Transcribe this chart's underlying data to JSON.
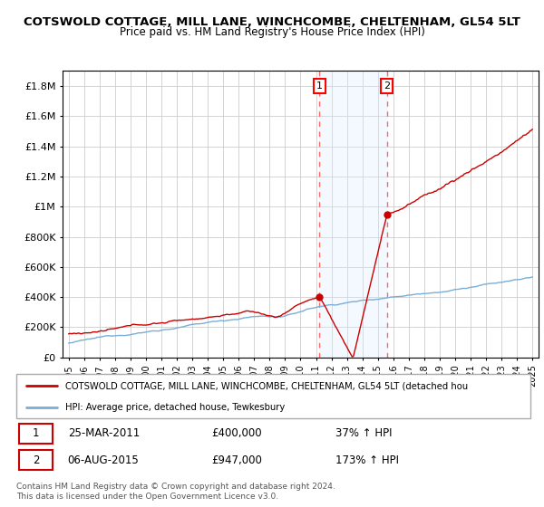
{
  "title": "COTSWOLD COTTAGE, MILL LANE, WINCHCOMBE, CHELTENHAM, GL54 5LT",
  "subtitle": "Price paid vs. HM Land Registry's House Price Index (HPI)",
  "ylabel_ticks": [
    "£0",
    "£200K",
    "£400K",
    "£600K",
    "£800K",
    "£1M",
    "£1.2M",
    "£1.4M",
    "£1.6M",
    "£1.8M"
  ],
  "ytick_values": [
    0,
    200000,
    400000,
    600000,
    800000,
    1000000,
    1200000,
    1400000,
    1600000,
    1800000
  ],
  "ylim": [
    0,
    1900000
  ],
  "sale1_year": 2011.23,
  "sale1_price": 400000,
  "sale2_year": 2015.59,
  "sale2_price": 947000,
  "legend_line1": "COTSWOLD COTTAGE, MILL LANE, WINCHCOMBE, CHELTENHAM, GL54 5LT (detached hou",
  "legend_line2": "HPI: Average price, detached house, Tewkesbury",
  "annot1_label": "1",
  "annot1_date": "25-MAR-2011",
  "annot1_price": "£400,000",
  "annot1_pct": "37% ↑ HPI",
  "annot2_label": "2",
  "annot2_date": "06-AUG-2015",
  "annot2_price": "£947,000",
  "annot2_pct": "173% ↑ HPI",
  "copyright": "Contains HM Land Registry data © Crown copyright and database right 2024.\nThis data is licensed under the Open Government Licence v3.0.",
  "red_line_color": "#cc0000",
  "blue_line_color": "#7aaed6",
  "shade_color": "#ddeeff",
  "vline_color": "#ff6666",
  "grid_color": "#cccccc"
}
